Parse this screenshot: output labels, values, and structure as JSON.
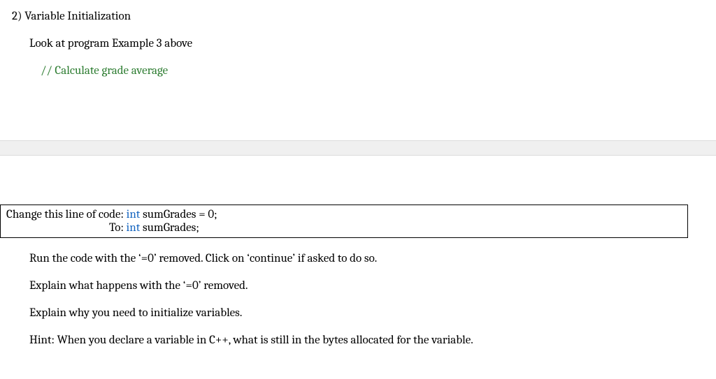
{
  "heading": "2) Variable Initialization",
  "look_at": "Look at program Example 3 above",
  "comment": "// Calculate grade average",
  "codebox": {
    "prefix1": "Change this line of code:  ",
    "kw1": "int",
    "rest1": " sumGrades = 0;",
    "prefix2": "To:  ",
    "kw2": "int",
    "rest2": " sumGrades;"
  },
  "run_line": "Run the code with the ‘=0’ removed.  Click on ‘continue’ if asked to do so.",
  "explain1": "Explain what happens with the ‘=0’ removed.",
  "explain2": "Explain why you need to initialize variables.",
  "hint": "Hint: When you declare a variable in C++, what is still in the bytes allocated for the variable.",
  "colors": {
    "comment_green": "#2e7d32",
    "keyword_blue": "#1565c0",
    "gray_band": "#f0f0f0",
    "band_border": "#dcdcdc"
  }
}
